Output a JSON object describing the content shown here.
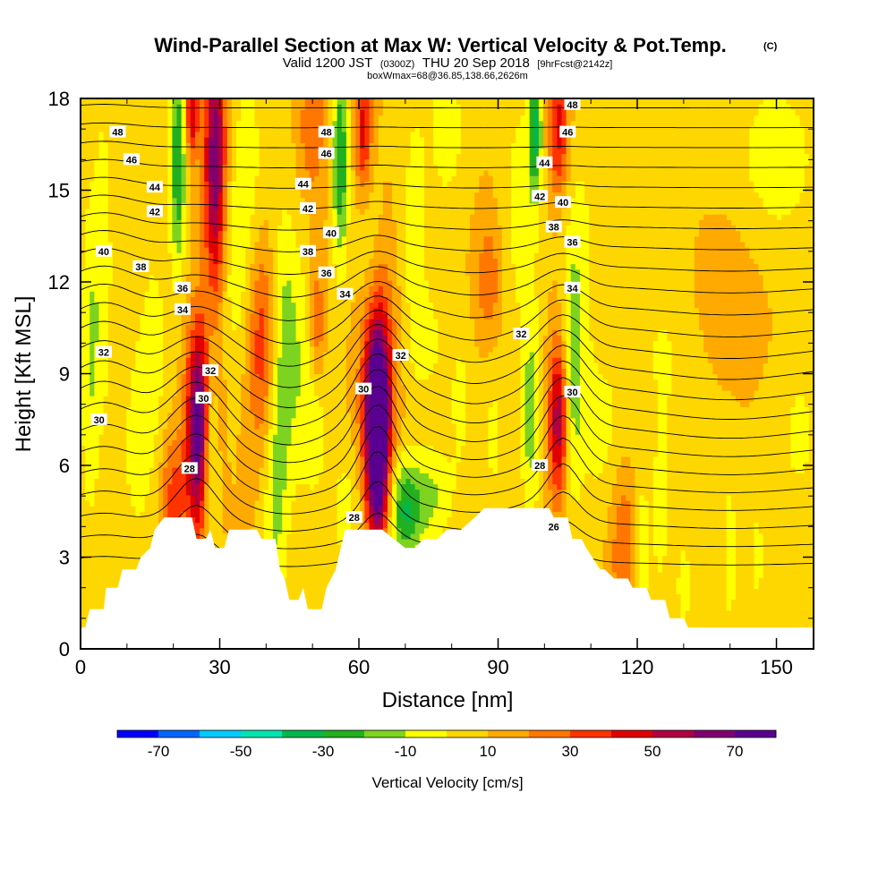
{
  "chart_data": {
    "type": "heatmap",
    "title": "Wind-Parallel Section at Max W: Vertical Velocity & Pot.Temp.",
    "copyright_mark": "(C)",
    "subtitle": {
      "valid_prefix": "Valid 1200 JST",
      "utc": "(0300Z)",
      "date": "THU 20 Sep 2018",
      "forecast": "[9hrFcst@2142z]"
    },
    "box_info": "boxWmax=68@36.85,138.66,2626m",
    "xlabel": "Distance [nm]",
    "ylabel": "Height [Kft MSL]",
    "xlim": [
      0,
      158
    ],
    "ylim": [
      0,
      18
    ],
    "x_ticks": [
      "0",
      "30",
      "60",
      "90",
      "120",
      "150"
    ],
    "x_tick_values": [
      0,
      30,
      60,
      90,
      120,
      150
    ],
    "y_ticks": [
      "0",
      "3",
      "6",
      "9",
      "12",
      "15",
      "18"
    ],
    "y_tick_values": [
      0,
      3,
      6,
      9,
      12,
      15,
      18
    ],
    "colorbar": {
      "label": "Vertical Velocity [cm/s]",
      "tick_labels": [
        "-70",
        "-50",
        "-30",
        "-10",
        "10",
        "30",
        "50",
        "70"
      ],
      "tick_values": [
        -70,
        -50,
        -30,
        -10,
        10,
        30,
        50,
        70
      ],
      "levels": [
        -80,
        -70,
        -60,
        -50,
        -40,
        -30,
        -20,
        -10,
        0,
        10,
        20,
        30,
        40,
        50,
        60,
        70,
        80
      ],
      "colors": [
        "#0000ff",
        "#0066ff",
        "#00ccff",
        "#00e5b0",
        "#00b84e",
        "#22b020",
        "#7ed320",
        "#ffff00",
        "#ffd700",
        "#ffaa00",
        "#ff7700",
        "#ff3300",
        "#e00000",
        "#b00040",
        "#800070",
        "#5a0090"
      ]
    },
    "terrain_kft": [
      [
        0,
        0.7
      ],
      [
        1,
        0.7
      ],
      [
        2,
        1.3
      ],
      [
        5,
        1.3
      ],
      [
        5.5,
        2.0
      ],
      [
        8,
        2.0
      ],
      [
        9,
        2.6
      ],
      [
        12,
        2.6
      ],
      [
        13,
        3.0
      ],
      [
        15,
        3.3
      ],
      [
        16,
        3.9
      ],
      [
        18,
        4.3
      ],
      [
        24,
        4.3
      ],
      [
        25,
        3.6
      ],
      [
        27,
        3.6
      ],
      [
        28,
        3.9
      ],
      [
        29,
        3.3
      ],
      [
        31,
        3.3
      ],
      [
        32,
        3.9
      ],
      [
        38,
        3.9
      ],
      [
        39,
        3.6
      ],
      [
        42,
        3.6
      ],
      [
        43,
        2.6
      ],
      [
        44,
        2.3
      ],
      [
        45,
        1.6
      ],
      [
        47,
        1.6
      ],
      [
        48,
        2.0
      ],
      [
        49,
        1.3
      ],
      [
        52,
        1.3
      ],
      [
        53,
        2.0
      ],
      [
        55,
        2.6
      ],
      [
        57,
        3.9
      ],
      [
        63,
        3.9
      ],
      [
        65,
        3.9
      ],
      [
        70,
        3.3
      ],
      [
        72,
        3.3
      ],
      [
        74,
        3.6
      ],
      [
        77,
        3.6
      ],
      [
        79,
        3.9
      ],
      [
        82,
        3.9
      ],
      [
        85,
        4.3
      ],
      [
        87,
        4.6
      ],
      [
        95,
        4.6
      ],
      [
        96,
        4.6
      ],
      [
        101,
        4.6
      ],
      [
        102,
        4.3
      ],
      [
        105,
        4.3
      ],
      [
        106,
        3.6
      ],
      [
        108,
        3.6
      ],
      [
        109,
        3.3
      ],
      [
        112,
        2.6
      ],
      [
        113,
        2.6
      ],
      [
        115,
        2.3
      ],
      [
        118,
        2.3
      ],
      [
        119,
        2.0
      ],
      [
        122,
        2.0
      ],
      [
        123,
        1.6
      ],
      [
        126,
        1.6
      ],
      [
        127,
        1.0
      ],
      [
        130,
        1.0
      ],
      [
        131,
        0.7
      ],
      [
        158,
        0.7
      ]
    ],
    "w_field": {
      "background": 10,
      "features": [
        {
          "x": 2,
          "y": 9.5,
          "sx": 1.6,
          "sy": 4,
          "w": -20
        },
        {
          "x": 5,
          "y": 13,
          "sx": 1.5,
          "sy": 4,
          "w": -15
        },
        {
          "x": 12,
          "y": 6.5,
          "sx": 3,
          "sy": 3,
          "w": -12
        },
        {
          "x": 16,
          "y": 10,
          "sx": 2.5,
          "sy": 3,
          "w": -12
        },
        {
          "x": 20,
          "y": 5,
          "sx": 2,
          "sy": 1.5,
          "w": 25
        },
        {
          "x": 21,
          "y": 16,
          "sx": 1.2,
          "sy": 2.5,
          "w": -40
        },
        {
          "x": 24,
          "y": 17.5,
          "sx": 1,
          "sy": 1,
          "w": 40
        },
        {
          "x": 25,
          "y": 6.5,
          "sx": 1.6,
          "sy": 2.2,
          "w": 48
        },
        {
          "x": 26,
          "y": 8.5,
          "sx": 2,
          "sy": 2,
          "w": 30
        },
        {
          "x": 28,
          "y": 7,
          "sx": 1,
          "sy": 2.5,
          "w": -25
        },
        {
          "x": 29,
          "y": 16,
          "sx": 1.6,
          "sy": 3,
          "w": 60
        },
        {
          "x": 33,
          "y": 12,
          "sx": 2,
          "sy": 2,
          "w": -12
        },
        {
          "x": 36,
          "y": 15.5,
          "sx": 3,
          "sy": 3,
          "w": -15
        },
        {
          "x": 39,
          "y": 10,
          "sx": 2,
          "sy": 2.5,
          "w": 28
        },
        {
          "x": 42,
          "y": 5,
          "sx": 2,
          "sy": 3,
          "w": -22
        },
        {
          "x": 44,
          "y": 11,
          "sx": 2,
          "sy": 3,
          "w": -15
        },
        {
          "x": 47,
          "y": 9,
          "sx": 3,
          "sy": 3,
          "w": -15
        },
        {
          "x": 50,
          "y": 17,
          "sx": 2,
          "sy": 1.5,
          "w": 20
        },
        {
          "x": 51,
          "y": 7.5,
          "sx": 2,
          "sy": 2,
          "w": -12
        },
        {
          "x": 51,
          "y": 10.5,
          "sx": 1.2,
          "sy": 1.5,
          "w": 25
        },
        {
          "x": 56,
          "y": 16,
          "sx": 1.2,
          "sy": 2.5,
          "w": -40
        },
        {
          "x": 57,
          "y": 4.5,
          "sx": 2,
          "sy": 1.5,
          "w": -15
        },
        {
          "x": 61,
          "y": 17,
          "sx": 1.2,
          "sy": 1.5,
          "w": 35
        },
        {
          "x": 62,
          "y": 13,
          "sx": 2,
          "sy": 2,
          "w": -12
        },
        {
          "x": 64,
          "y": 7.5,
          "sx": 1.8,
          "sy": 2,
          "w": 70
        },
        {
          "x": 64,
          "y": 9,
          "sx": 2.5,
          "sy": 2.5,
          "w": 35
        },
        {
          "x": 64,
          "y": 5,
          "sx": 1.5,
          "sy": 1.5,
          "w": 35
        },
        {
          "x": 70,
          "y": 4.5,
          "sx": 2.5,
          "sy": 1.2,
          "w": -40
        },
        {
          "x": 72,
          "y": 14,
          "sx": 2,
          "sy": 3,
          "w": -15
        },
        {
          "x": 75,
          "y": 10,
          "sx": 3,
          "sy": 1.5,
          "w": -12
        },
        {
          "x": 76,
          "y": 5,
          "sx": 3,
          "sy": 1.2,
          "w": -20
        },
        {
          "x": 79,
          "y": 17,
          "sx": 3,
          "sy": 2,
          "w": -15
        },
        {
          "x": 82,
          "y": 8,
          "sx": 2,
          "sy": 2,
          "w": -12
        },
        {
          "x": 88,
          "y": 12,
          "sx": 2,
          "sy": 1.5,
          "w": 18
        },
        {
          "x": 89,
          "y": 7,
          "sx": 2,
          "sy": 2,
          "w": -12
        },
        {
          "x": 95,
          "y": 14.5,
          "sx": 3,
          "sy": 3,
          "w": -15
        },
        {
          "x": 97,
          "y": 7.5,
          "sx": 1.5,
          "sy": 2.5,
          "w": -25
        },
        {
          "x": 98,
          "y": 17,
          "sx": 1,
          "sy": 1.5,
          "w": -40
        },
        {
          "x": 103,
          "y": 7.5,
          "sx": 1.5,
          "sy": 1.8,
          "w": 50
        },
        {
          "x": 103,
          "y": 17,
          "sx": 1.5,
          "sy": 1.5,
          "w": 35
        },
        {
          "x": 106,
          "y": 9,
          "sx": 1.5,
          "sy": 3,
          "w": -22
        },
        {
          "x": 108,
          "y": 13,
          "sx": 2.5,
          "sy": 3,
          "w": -12
        },
        {
          "x": 112,
          "y": 7,
          "sx": 4,
          "sy": 2,
          "w": -12
        },
        {
          "x": 117,
          "y": 3.5,
          "sx": 2,
          "sy": 2,
          "w": 20
        },
        {
          "x": 121,
          "y": 3,
          "sx": 1.2,
          "sy": 2,
          "w": -15
        },
        {
          "x": 125,
          "y": 4,
          "sx": 1.5,
          "sy": 2,
          "w": -12
        },
        {
          "x": 128,
          "y": 10,
          "sx": 8,
          "sy": 3,
          "w": -12
        },
        {
          "x": 130,
          "y": 2,
          "sx": 1.2,
          "sy": 1.2,
          "w": -15
        },
        {
          "x": 138,
          "y": 11.5,
          "sx": 6,
          "sy": 2,
          "w": 14
        },
        {
          "x": 140,
          "y": 3,
          "sx": 1.2,
          "sy": 2,
          "w": -15
        },
        {
          "x": 146,
          "y": 3,
          "sx": 1.2,
          "sy": 2,
          "w": -12
        },
        {
          "x": 150,
          "y": 16,
          "sx": 8,
          "sy": 2.5,
          "w": -14
        },
        {
          "x": 155,
          "y": 7,
          "sx": 4,
          "sy": 2,
          "w": -12
        }
      ]
    },
    "theta_contours": {
      "interval": 1,
      "base_theta": 26,
      "base_height_kft": 3.5,
      "lapse_deg_per_kft": 1.55,
      "perturbations": [
        {
          "x": 25,
          "y": 7,
          "sx": 5,
          "sy": 3,
          "amp": -2.5
        },
        {
          "x": 64,
          "y": 8,
          "sx": 4,
          "sy": 3,
          "amp": -3
        },
        {
          "x": 104,
          "y": 8,
          "sx": 4,
          "sy": 3,
          "amp": -2.5
        },
        {
          "x": 5,
          "y": 10,
          "sx": 6,
          "sy": 4,
          "amp": -1.2
        },
        {
          "x": 45,
          "y": 8,
          "sx": 7,
          "sy": 3,
          "amp": 1.2
        },
        {
          "x": 85,
          "y": 8,
          "sx": 7,
          "sy": 3,
          "amp": 1.0
        },
        {
          "x": 140,
          "y": 8,
          "sx": 15,
          "sy": 3,
          "amp": 0.8
        }
      ]
    },
    "contour_labels": [
      {
        "text": "48",
        "x": 8,
        "y": 16.9
      },
      {
        "text": "46",
        "x": 11,
        "y": 16.0
      },
      {
        "text": "44",
        "x": 16,
        "y": 15.1
      },
      {
        "text": "42",
        "x": 16,
        "y": 14.3
      },
      {
        "text": "40",
        "x": 5,
        "y": 13.0
      },
      {
        "text": "38",
        "x": 13,
        "y": 12.5
      },
      {
        "text": "36",
        "x": 22,
        "y": 11.8
      },
      {
        "text": "34",
        "x": 22,
        "y": 11.1
      },
      {
        "text": "32",
        "x": 5,
        "y": 9.7
      },
      {
        "text": "30",
        "x": 4,
        "y": 7.5
      },
      {
        "text": "32",
        "x": 28,
        "y": 9.1
      },
      {
        "text": "30",
        "x": 26.5,
        "y": 8.2
      },
      {
        "text": "28",
        "x": 23.5,
        "y": 5.9
      },
      {
        "text": "48",
        "x": 53,
        "y": 16.9
      },
      {
        "text": "46",
        "x": 53,
        "y": 16.2
      },
      {
        "text": "44",
        "x": 48,
        "y": 15.2
      },
      {
        "text": "42",
        "x": 49,
        "y": 14.4
      },
      {
        "text": "40",
        "x": 54,
        "y": 13.6
      },
      {
        "text": "38",
        "x": 49,
        "y": 13.0
      },
      {
        "text": "36",
        "x": 53,
        "y": 12.3
      },
      {
        "text": "34",
        "x": 57,
        "y": 11.6
      },
      {
        "text": "32",
        "x": 69,
        "y": 9.6
      },
      {
        "text": "30",
        "x": 61,
        "y": 8.5
      },
      {
        "text": "28",
        "x": 59,
        "y": 4.3
      },
      {
        "text": "48",
        "x": 106,
        "y": 17.8
      },
      {
        "text": "46",
        "x": 105,
        "y": 16.9
      },
      {
        "text": "44",
        "x": 100,
        "y": 15.9
      },
      {
        "text": "42",
        "x": 99,
        "y": 14.8
      },
      {
        "text": "40",
        "x": 104,
        "y": 14.6
      },
      {
        "text": "38",
        "x": 102,
        "y": 13.8
      },
      {
        "text": "36",
        "x": 106,
        "y": 13.3
      },
      {
        "text": "34",
        "x": 106,
        "y": 11.8
      },
      {
        "text": "32",
        "x": 95,
        "y": 10.3
      },
      {
        "text": "30",
        "x": 106,
        "y": 8.4
      },
      {
        "text": "28",
        "x": 99,
        "y": 6.0
      },
      {
        "text": "26",
        "x": 102,
        "y": 4.0
      }
    ]
  }
}
